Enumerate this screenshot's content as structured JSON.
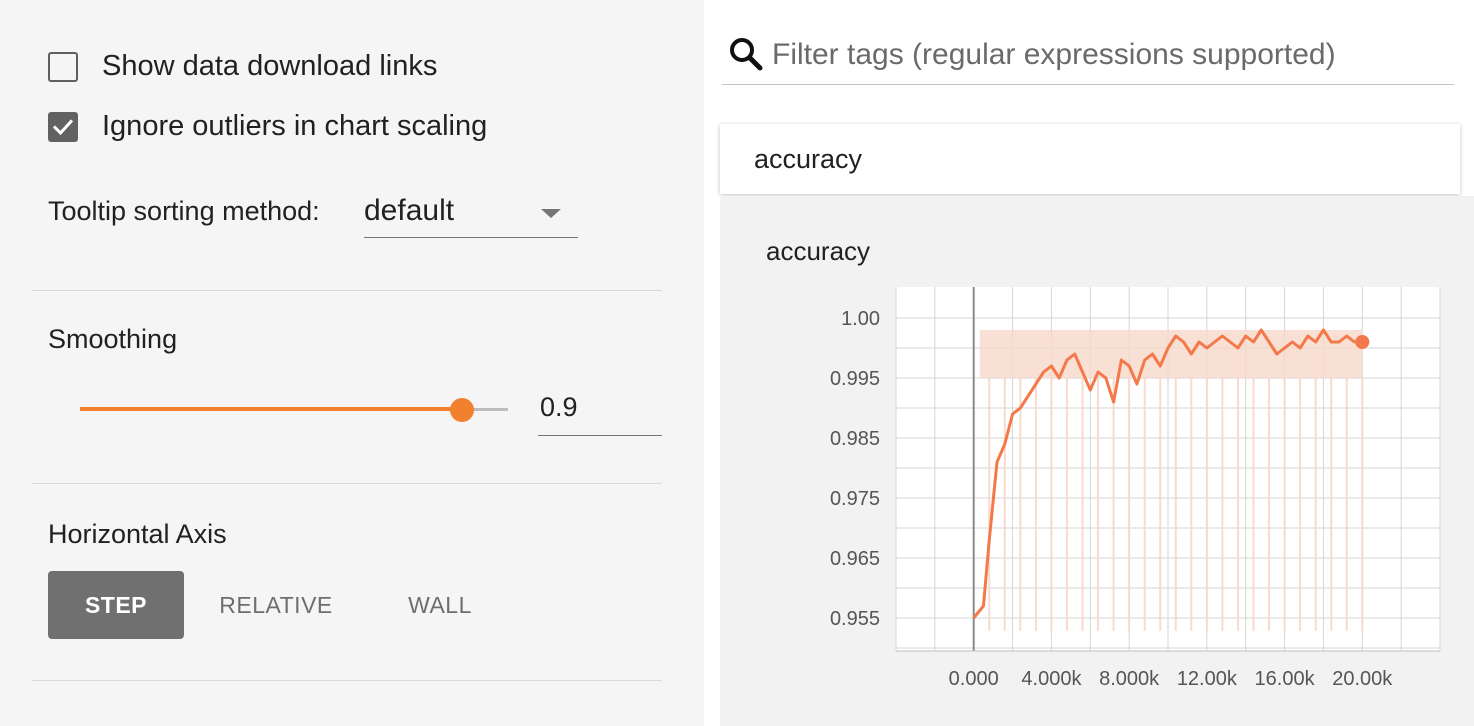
{
  "sidebar": {
    "show_download_links": {
      "label": "Show data download links",
      "checked": false
    },
    "ignore_outliers": {
      "label": "Ignore outliers in chart scaling",
      "checked": true
    },
    "tooltip_sorting": {
      "label": "Tooltip sorting method:",
      "value": "default"
    },
    "smoothing": {
      "title": "Smoothing",
      "value": "0.9",
      "level": 0.9
    },
    "horizontal_axis": {
      "title": "Horizontal Axis",
      "options": [
        "STEP",
        "RELATIVE",
        "WALL"
      ],
      "selected": "STEP"
    }
  },
  "filter": {
    "placeholder": "Filter tags (regular expressions supported)"
  },
  "group": {
    "name": "accuracy"
  },
  "chart_title": "accuracy",
  "colors": {
    "accent": "#f1812e",
    "line": "#f4794a",
    "band": "#f8d8c9",
    "step_button": "#707070"
  },
  "chart_data": {
    "type": "line",
    "title": "accuracy",
    "x_ticks": [
      "0.000",
      "4.000k",
      "8.000k",
      "12.00k",
      "16.00k",
      "20.00k"
    ],
    "y_ticks": [
      "1.00",
      "0.995",
      "0.985",
      "0.975",
      "0.965",
      "0.955"
    ],
    "xlim": [
      -4000,
      24000
    ],
    "ylim": [
      0.95,
      1.0
    ],
    "grid": true,
    "series": [
      {
        "x": [
          0,
          500,
          800,
          1200,
          1600,
          2000,
          2400,
          2800,
          3200,
          3600,
          4000,
          4400,
          4800,
          5200,
          5600,
          6000,
          6400,
          6800,
          7200,
          7600,
          8000,
          8400,
          8800,
          9200,
          9600,
          10000,
          10400,
          10800,
          11200,
          11600,
          12000,
          12400,
          12800,
          13200,
          13600,
          14000,
          14400,
          14800,
          15200,
          15600,
          16000,
          16400,
          16800,
          17200,
          17600,
          18000,
          18400,
          18800,
          19200,
          19600,
          20000
        ],
        "y": [
          0.95,
          0.952,
          0.963,
          0.976,
          0.979,
          0.984,
          0.985,
          0.987,
          0.989,
          0.991,
          0.992,
          0.99,
          0.993,
          0.994,
          0.991,
          0.988,
          0.991,
          0.99,
          0.986,
          0.993,
          0.992,
          0.989,
          0.993,
          0.994,
          0.992,
          0.995,
          0.997,
          0.996,
          0.994,
          0.996,
          0.995,
          0.996,
          0.997,
          0.996,
          0.995,
          0.997,
          0.996,
          0.998,
          0.996,
          0.994,
          0.995,
          0.996,
          0.995,
          0.997,
          0.996,
          0.998,
          0.996,
          0.996,
          0.997,
          0.996,
          0.996
        ],
        "band_high": 0.998,
        "band_low": 0.99
      }
    ]
  }
}
